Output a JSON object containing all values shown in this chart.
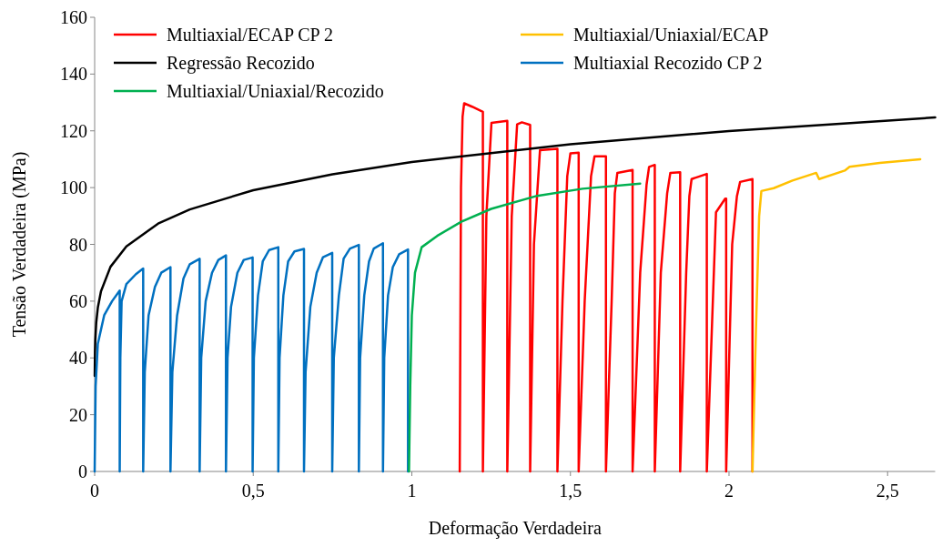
{
  "chart_data": {
    "type": "line",
    "xlabel": "Deformação Verdadeira",
    "ylabel": "Tensão Verdadeira (MPa)",
    "xlim": [
      0,
      2.65
    ],
    "xticks": [
      0,
      {
        "value": 0.5,
        "label": "0,5"
      },
      1,
      {
        "value": 1.5,
        "label": "1,5"
      },
      2,
      {
        "value": 2.5,
        "label": "2,5"
      }
    ],
    "ylim": [
      0,
      160
    ],
    "yticks": [
      0,
      20,
      40,
      60,
      80,
      100,
      120,
      140,
      160
    ],
    "grid": false,
    "legend": "top",
    "marker": "none",
    "line_style": "solid",
    "series": [
      {
        "name": "Multiaxial/ECAP CP 2",
        "color": "#ff0000",
        "x": [
          1.151,
          1.155,
          1.16,
          1.165,
          1.19,
          1.224,
          1.224,
          1.235,
          1.251,
          1.301,
          1.301,
          1.315,
          1.332,
          1.347,
          1.373,
          1.373,
          1.385,
          1.404,
          1.459,
          1.459,
          1.475,
          1.49,
          1.5,
          1.526,
          1.526,
          1.545,
          1.565,
          1.576,
          1.612,
          1.612,
          1.63,
          1.64,
          1.648,
          1.696,
          1.696,
          1.72,
          1.74,
          1.748,
          1.766,
          1.766,
          1.785,
          1.805,
          1.815,
          1.846,
          1.846,
          1.865,
          1.875,
          1.882,
          1.93,
          1.93,
          1.959,
          1.988,
          1.991,
          1.991,
          2.01,
          2.025,
          2.035,
          2.074,
          2.074
        ],
        "values": [
          0,
          100,
          125,
          129.7,
          128.5,
          126.7,
          0,
          90,
          122.8,
          123.5,
          0,
          90,
          122.3,
          123,
          122.1,
          0,
          80,
          113.2,
          113.7,
          0,
          60,
          104,
          112.1,
          112.3,
          0,
          60,
          104,
          111,
          111,
          0,
          60,
          98,
          105.2,
          106.2,
          0,
          70,
          101,
          107.3,
          108,
          0,
          70,
          98,
          105.2,
          105.4,
          0,
          70,
          97,
          103,
          104.8,
          0,
          91.3,
          96.1,
          96.1,
          0,
          80,
          97,
          102,
          103,
          0
        ]
      },
      {
        "name": "Multiaxial/Uniaxial/ECAP",
        "color": "#ffc000",
        "x": [
          2.074,
          2.085,
          2.095,
          2.102,
          2.141,
          2.2,
          2.275,
          2.284,
          2.365,
          2.38,
          2.475,
          2.603
        ],
        "values": [
          0,
          50,
          90,
          98.8,
          99.8,
          102.5,
          105.2,
          103,
          106,
          107.3,
          108.7,
          110
        ]
      },
      {
        "name": "Regressão Recozido",
        "color": "#000000",
        "x": [
          0.0002,
          0.001,
          0.002,
          0.005,
          0.01,
          0.02,
          0.05,
          0.1,
          0.2,
          0.3,
          0.5,
          0.75,
          1,
          1.5,
          2,
          2.65
        ],
        "values": [
          33.7,
          42,
          46.2,
          52.5,
          57.7,
          63.5,
          72.1,
          79.3,
          87.3,
          92.3,
          99.1,
          104.7,
          109,
          115.3,
          119.9,
          124.7
        ]
      },
      {
        "name": "Multiaxial Recozido CP 2",
        "color": "#0070c0",
        "x": [
          0,
          0.003,
          0.01,
          0.03,
          0.055,
          0.079,
          0.079,
          0.081,
          0.085,
          0.1,
          0.13,
          0.153,
          0.153,
          0.158,
          0.17,
          0.19,
          0.21,
          0.239,
          0.239,
          0.245,
          0.26,
          0.28,
          0.3,
          0.331,
          0.331,
          0.336,
          0.35,
          0.37,
          0.39,
          0.414,
          0.414,
          0.419,
          0.43,
          0.45,
          0.47,
          0.498,
          0.498,
          0.502,
          0.515,
          0.53,
          0.55,
          0.579,
          0.579,
          0.583,
          0.595,
          0.61,
          0.63,
          0.66,
          0.66,
          0.665,
          0.68,
          0.7,
          0.72,
          0.749,
          0.749,
          0.754,
          0.77,
          0.785,
          0.805,
          0.833,
          0.833,
          0.837,
          0.85,
          0.865,
          0.88,
          0.909,
          0.909,
          0.913,
          0.925,
          0.94,
          0.96,
          0.988,
          0.988
        ],
        "values": [
          0,
          30,
          45,
          55,
          60,
          63.7,
          0,
          40,
          60,
          66,
          69.5,
          71.5,
          0,
          35,
          55,
          65,
          70,
          72,
          0,
          35,
          55,
          68,
          73,
          74.9,
          0,
          40,
          60,
          70,
          74.5,
          76.1,
          0,
          40,
          58,
          70,
          74.5,
          75.4,
          0,
          40,
          62,
          74,
          78,
          79,
          0,
          40,
          62,
          74,
          77.5,
          78.4,
          0,
          35,
          58,
          70,
          75.5,
          77,
          0,
          40,
          62,
          75,
          78.5,
          79.8,
          0,
          40,
          62,
          74,
          78.5,
          80.4,
          0,
          40,
          62,
          72,
          76.5,
          78.2,
          0
        ]
      },
      {
        "name": "Multiaxial/Uniaxial/Recozido",
        "color": "#00b050",
        "x": [
          0.991,
          0.995,
          1,
          1.01,
          1.031,
          1.08,
          1.156,
          1.25,
          1.395,
          1.538,
          1.72
        ],
        "values": [
          0,
          30,
          55,
          70,
          79,
          83,
          88,
          92.5,
          97.1,
          99.6,
          101.4
        ]
      }
    ]
  }
}
